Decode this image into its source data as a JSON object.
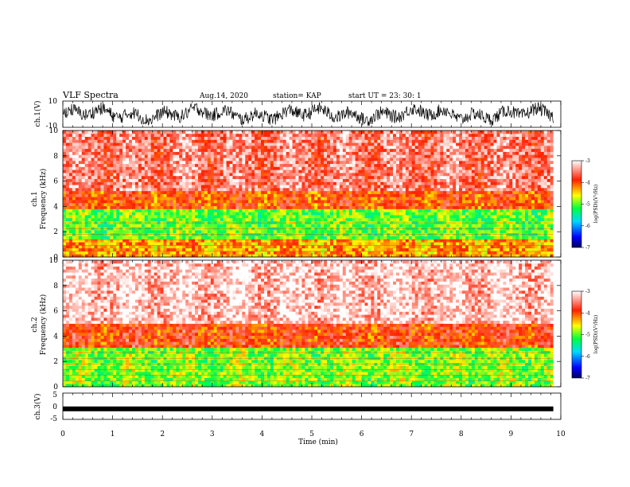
{
  "header": {
    "title": "VLF Spectra",
    "date": "Aug.14, 2020",
    "station": "station= KAP",
    "start": "start  UT =   23: 30: 1"
  },
  "chart_data": [
    {
      "type": "line",
      "ylabel": "ch.1(V)",
      "ylim": [
        -10,
        10
      ],
      "yticks": [
        "10",
        "-10"
      ],
      "description_values": "dense waveform oscillating mostly between -8 and 8 V"
    },
    {
      "type": "heatmap",
      "ylabel": "ch.1\nFrequency (kHz)",
      "ylim": [
        0,
        10
      ],
      "yticks": [
        "0",
        "2",
        "4",
        "6",
        "8",
        "10"
      ],
      "colorbar": {
        "label": "log(PSD)(V²/Hz)",
        "range": [
          -7,
          -3
        ],
        "ticks": [
          "-3",
          "-4",
          "-5",
          "-6",
          "-7"
        ]
      },
      "bands": [
        {
          "from_khz": 0,
          "to_khz": 1.4,
          "level": -4.3
        },
        {
          "from_khz": 1.4,
          "to_khz": 3.8,
          "level": -5.0
        },
        {
          "from_khz": 3.8,
          "to_khz": 5.2,
          "level": -4.0
        },
        {
          "from_khz": 5.2,
          "to_khz": 10,
          "level": -3.5
        }
      ]
    },
    {
      "type": "heatmap",
      "ylabel": "ch.2\nFrequency (kHz)",
      "ylim": [
        0,
        10
      ],
      "yticks": [
        "0",
        "2",
        "4",
        "6",
        "8",
        "10"
      ],
      "colorbar": {
        "label": "log(PSD)(V²/Hz)",
        "range": [
          -7,
          -3
        ],
        "ticks": [
          "-3",
          "-4",
          "-5",
          "-6",
          "-7"
        ]
      },
      "bands": [
        {
          "from_khz": 0,
          "to_khz": 3.0,
          "level": -4.9
        },
        {
          "from_khz": 3.0,
          "to_khz": 5.0,
          "level": -3.9
        },
        {
          "from_khz": 5.0,
          "to_khz": 10,
          "level": -3.2
        }
      ]
    },
    {
      "type": "line",
      "ylabel": "ch.3(V)",
      "ylim": [
        -5,
        5
      ],
      "yticks": [
        "5",
        "0",
        "-5"
      ],
      "baseline": -1.0
    }
  ],
  "xaxis": {
    "label": "Time (min)",
    "range": [
      0,
      10
    ],
    "ticks": [
      "0",
      "1",
      "2",
      "3",
      "4",
      "5",
      "6",
      "7",
      "8",
      "9",
      "10"
    ],
    "data_end": 9.85
  },
  "colors": {
    "spec_scale": [
      "#000080",
      "#0000ff",
      "#00ffff",
      "#00ff00",
      "#ffff00",
      "#ff0000",
      "#ffffff"
    ]
  }
}
